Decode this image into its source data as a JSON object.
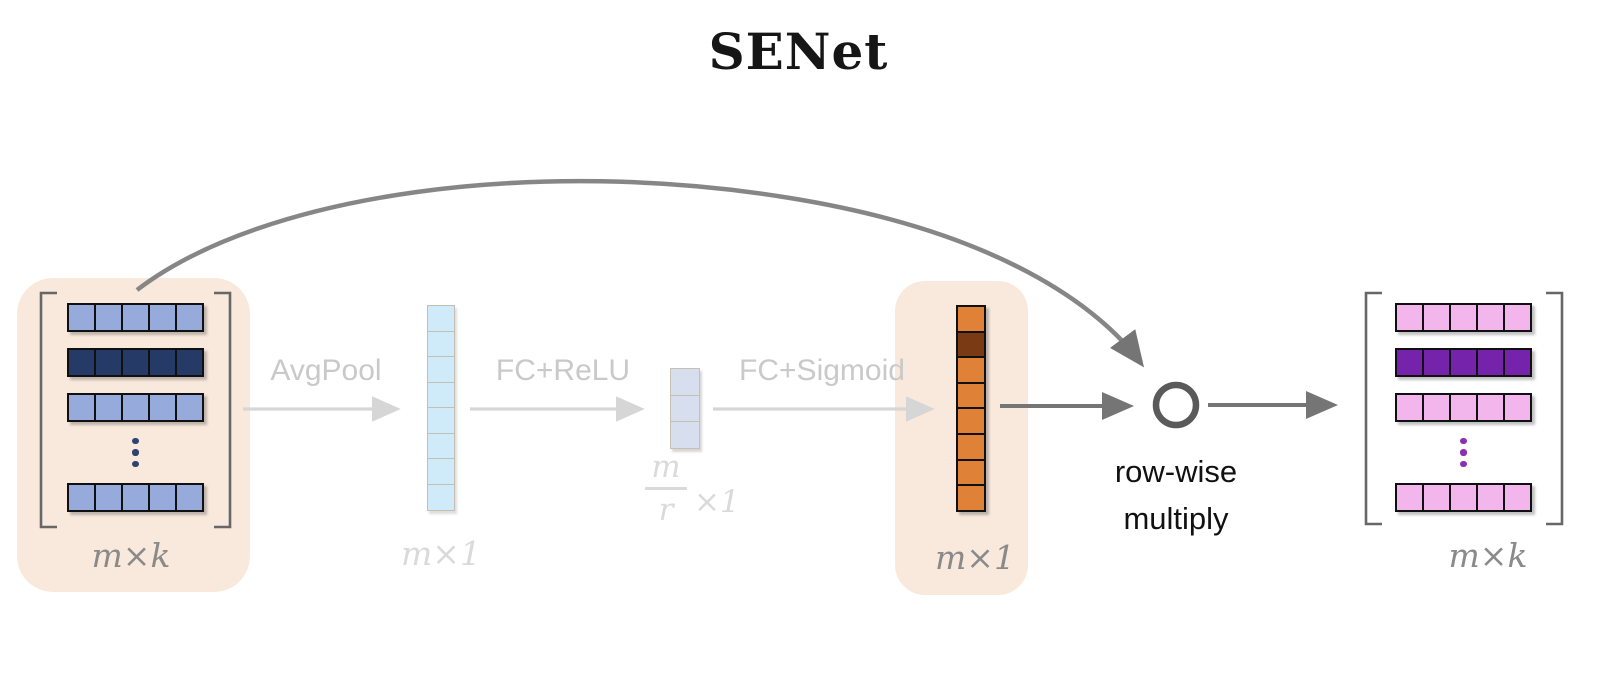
{
  "title": "SENet",
  "colors": {
    "peach_bg": "#f9e9dc",
    "light_blue": "#96abdc",
    "dark_navy": "#253a66",
    "navy_dots": "#2d4372",
    "light_cyan": "#cfeaf8",
    "periwinkle": "#d7dfef",
    "orange": "#e08138",
    "dark_brown": "#7a3b14",
    "light_pink": "#f2b6ec",
    "dark_purple": "#7623ac",
    "purple_dots": "#8b2fb5",
    "faded_arrow": "#d6d6d6",
    "faded_text": "#c9c9c9",
    "dark_arrow": "#757575",
    "circle_stroke": "#5a5a5a",
    "bracket_gray": "#676767",
    "label_gray": "#8a8a8a"
  },
  "stages": {
    "avgpool": "AvgPool",
    "fc_relu": "FC+ReLU",
    "fc_sigmoid": "FC+Sigmoid"
  },
  "input_matrix": {
    "label": "m×k",
    "cols": 5,
    "rows": [
      {
        "color_key": "light_blue"
      },
      {
        "color_key": "dark_navy"
      },
      {
        "color_key": "light_blue"
      },
      {
        "dots": true,
        "dot_color_key": "navy_dots"
      },
      {
        "color_key": "light_blue"
      }
    ]
  },
  "pooled_vector": {
    "label": "m×1",
    "cells": 8,
    "cell_color_key": "light_cyan"
  },
  "bottleneck_vector": {
    "label_numerator": "m",
    "label_denominator": "r",
    "label_suffix": "×1",
    "cells": 3,
    "cell_color_key": "periwinkle"
  },
  "attention_vector": {
    "label": "m×1",
    "cells": 8,
    "cell_color_key": "orange",
    "highlight_index": 1,
    "highlight_color_key": "dark_brown"
  },
  "multiply": {
    "line1": "row-wise",
    "line2": "multiply"
  },
  "output_matrix": {
    "label": "m×k",
    "cols": 5,
    "rows": [
      {
        "color_key": "light_pink"
      },
      {
        "color_key": "dark_purple"
      },
      {
        "color_key": "light_pink"
      },
      {
        "dots": true,
        "dot_color_key": "purple_dots"
      },
      {
        "color_key": "light_pink"
      }
    ]
  }
}
